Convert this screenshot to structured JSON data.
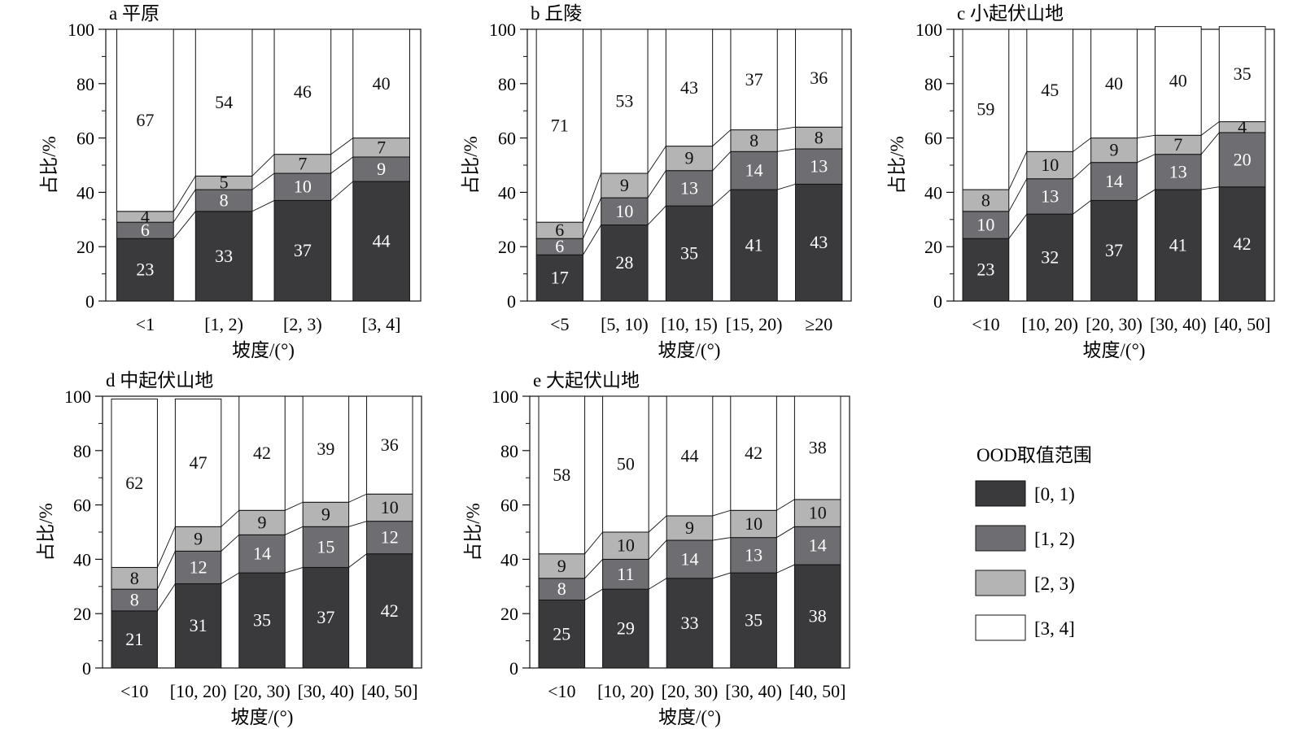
{
  "colors": {
    "c0": "#3a3a3d",
    "c1": "#6e6e72",
    "c2": "#b4b4b4",
    "c3": "#ffffff",
    "axis": "#111111"
  },
  "legend": {
    "title": "OOD取值范围",
    "items": [
      {
        "label": "[0, 1)",
        "color": "#3a3a3d"
      },
      {
        "label": "[1, 2)",
        "color": "#6e6e72"
      },
      {
        "label": "[2, 3)",
        "color": "#b4b4b4"
      },
      {
        "label": "[3, 4]",
        "color": "#ffffff"
      }
    ]
  },
  "chart_data": [
    {
      "type": "bar",
      "stacked": true,
      "title": "a 平原",
      "xlabel": "坡度/(°)",
      "ylabel": "占比/%",
      "ylim": [
        0,
        100
      ],
      "yticks": [
        "0",
        "20",
        "40",
        "60",
        "80",
        "100"
      ],
      "categories": [
        "<1",
        "[1, 2)",
        "[2, 3)",
        "[3, 4]"
      ],
      "series": [
        {
          "name": "[0, 1)",
          "values": [
            23,
            33,
            37,
            44
          ]
        },
        {
          "name": "[1, 2)",
          "values": [
            6,
            8,
            10,
            9
          ]
        },
        {
          "name": "[2, 3)",
          "values": [
            4,
            5,
            7,
            7
          ]
        },
        {
          "name": "[3, 4]",
          "values": [
            67,
            54,
            46,
            40
          ]
        }
      ]
    },
    {
      "type": "bar",
      "stacked": true,
      "title": "b 丘陵",
      "xlabel": "坡度/(°)",
      "ylabel": "占比/%",
      "ylim": [
        0,
        100
      ],
      "yticks": [
        "0",
        "20",
        "40",
        "60",
        "80",
        "100"
      ],
      "categories": [
        "<5",
        "[5, 10)",
        "[10, 15)",
        "[15, 20)",
        "≥20"
      ],
      "series": [
        {
          "name": "[0, 1)",
          "values": [
            17,
            28,
            35,
            41,
            43
          ]
        },
        {
          "name": "[1, 2)",
          "values": [
            6,
            10,
            13,
            14,
            13
          ]
        },
        {
          "name": "[2, 3)",
          "values": [
            6,
            9,
            9,
            8,
            8
          ]
        },
        {
          "name": "[3, 4]",
          "values": [
            71,
            53,
            43,
            37,
            36
          ]
        }
      ]
    },
    {
      "type": "bar",
      "stacked": true,
      "title": "c 小起伏山地",
      "xlabel": "坡度/(°)",
      "ylabel": "占比/%",
      "ylim": [
        0,
        100
      ],
      "yticks": [
        "0",
        "20",
        "40",
        "60",
        "80",
        "100"
      ],
      "categories": [
        "<10",
        "[10, 20)",
        "[20, 30)",
        "[30, 40)",
        "[40, 50]"
      ],
      "series": [
        {
          "name": "[0, 1)",
          "values": [
            23,
            32,
            37,
            41,
            42
          ]
        },
        {
          "name": "[1, 2)",
          "values": [
            10,
            13,
            14,
            13,
            20
          ]
        },
        {
          "name": "[2, 3)",
          "values": [
            8,
            10,
            9,
            7,
            4
          ]
        },
        {
          "name": "[3, 4]",
          "values": [
            59,
            45,
            40,
            40,
            35
          ]
        }
      ]
    },
    {
      "type": "bar",
      "stacked": true,
      "title": "d 中起伏山地",
      "xlabel": "坡度/(°)",
      "ylabel": "占比/%",
      "ylim": [
        0,
        100
      ],
      "yticks": [
        "0",
        "20",
        "40",
        "60",
        "80",
        "100"
      ],
      "categories": [
        "<10",
        "[10, 20)",
        "[20, 30)",
        "[30, 40)",
        "[40, 50]"
      ],
      "series": [
        {
          "name": "[0, 1)",
          "values": [
            21,
            31,
            35,
            37,
            42
          ]
        },
        {
          "name": "[1, 2)",
          "values": [
            8,
            12,
            14,
            15,
            12
          ]
        },
        {
          "name": "[2, 3)",
          "values": [
            8,
            9,
            9,
            9,
            10
          ]
        },
        {
          "name": "[3, 4]",
          "values": [
            62,
            47,
            42,
            39,
            36
          ]
        }
      ]
    },
    {
      "type": "bar",
      "stacked": true,
      "title": "e 大起伏山地",
      "xlabel": "坡度/(°)",
      "ylabel": "占比/%",
      "ylim": [
        0,
        100
      ],
      "yticks": [
        "0",
        "20",
        "40",
        "60",
        "80",
        "100"
      ],
      "categories": [
        "<10",
        "[10, 20)",
        "[20, 30)",
        "[30, 40)",
        "[40, 50]"
      ],
      "series": [
        {
          "name": "[0, 1)",
          "values": [
            25,
            29,
            33,
            35,
            38
          ]
        },
        {
          "name": "[1, 2)",
          "values": [
            8,
            11,
            14,
            13,
            14
          ]
        },
        {
          "name": "[2, 3)",
          "values": [
            9,
            10,
            9,
            10,
            10
          ]
        },
        {
          "name": "[3, 4]",
          "values": [
            58,
            50,
            44,
            42,
            38
          ]
        }
      ]
    }
  ]
}
